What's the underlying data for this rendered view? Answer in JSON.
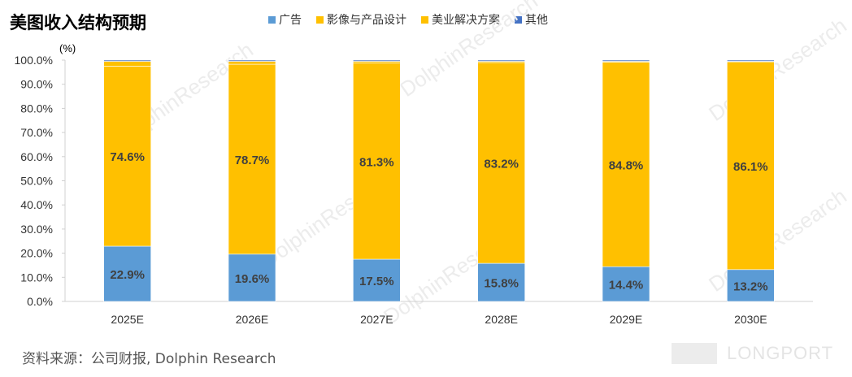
{
  "title": "美图收入结构预期",
  "unit_label": "(%)",
  "source": "资料来源：公司财报, Dolphin Research",
  "watermarks": {
    "text": "DolphinResearch",
    "brand": "LONGPORT"
  },
  "colors": {
    "ads": "#5B9BD5",
    "imaging": "#FFC000",
    "beauty": "#FFC000",
    "other": "#4472C4"
  },
  "chart_data": {
    "type": "bar",
    "stacked": true,
    "categories": [
      "2025E",
      "2026E",
      "2027E",
      "2028E",
      "2029E",
      "2030E"
    ],
    "series": [
      {
        "name": "广告",
        "values": [
          22.9,
          19.6,
          17.5,
          15.8,
          14.4,
          13.2
        ],
        "color": "#5B9BD5"
      },
      {
        "name": "影像与产品设计",
        "values": [
          74.6,
          78.7,
          81.3,
          83.2,
          84.8,
          86.1
        ],
        "color": "#FFC000"
      },
      {
        "name": "美业解决方案",
        "values": [
          2.0,
          1.2,
          0.7,
          0.5,
          0.3,
          0.2
        ],
        "color": "#FFC000"
      },
      {
        "name": "其他",
        "values": [
          0.5,
          0.5,
          0.5,
          0.5,
          0.5,
          0.5
        ],
        "color": "#4472C4"
      }
    ],
    "data_labels": [
      {
        "series": "广告",
        "labels": [
          "22.9%",
          "19.6%",
          "17.5%",
          "15.8%",
          "14.4%",
          "13.2%"
        ]
      },
      {
        "series": "影像与产品设计",
        "labels": [
          "74.6%",
          "78.7%",
          "81.3%",
          "83.2%",
          "84.8%",
          "86.1%"
        ]
      }
    ],
    "yticks": [
      "0.0%",
      "10.0%",
      "20.0%",
      "30.0%",
      "40.0%",
      "50.0%",
      "60.0%",
      "70.0%",
      "80.0%",
      "90.0%",
      "100.0%"
    ],
    "ylim": [
      0,
      100
    ],
    "grid": false,
    "legend_position": "top"
  }
}
